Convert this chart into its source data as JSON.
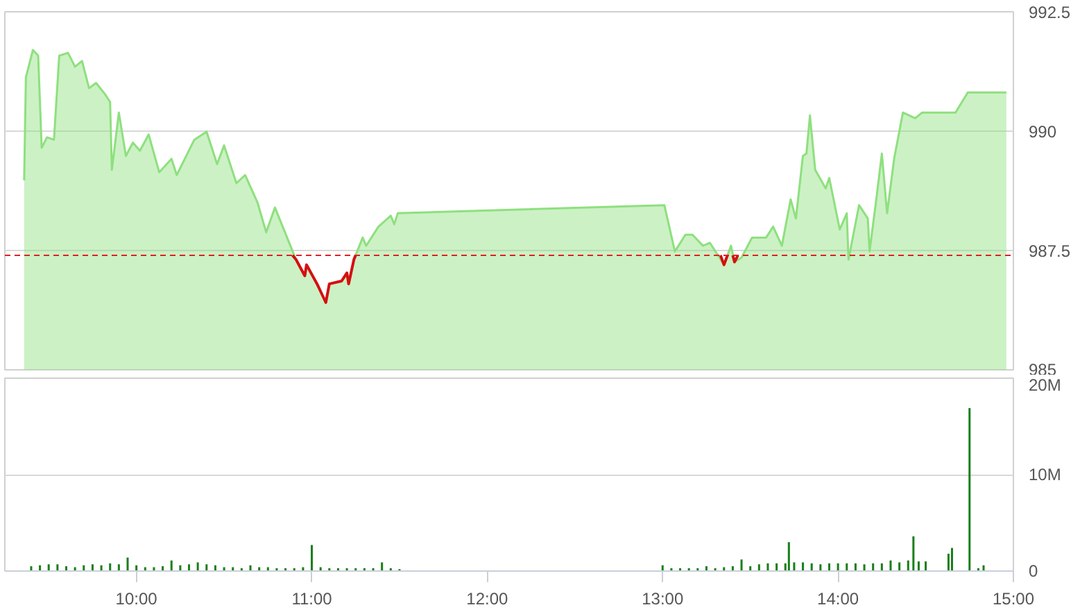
{
  "chart_data": [
    {
      "type": "area",
      "xlim": [
        9.25,
        15
      ],
      "ylim": [
        985,
        992.5
      ],
      "yticks": [
        985,
        987.5,
        990,
        992.5
      ],
      "grid": "y",
      "tick_labels": "y",
      "line_style": "solid",
      "ref_lines": [
        {
          "axis": "y",
          "value": 987.4,
          "color": "#e02020",
          "line_style": "dashed"
        }
      ],
      "series": [
        {
          "color": "#8ee07e",
          "x": [
            9.36,
            9.37,
            9.41,
            9.44,
            9.46,
            9.49,
            9.53,
            9.56,
            9.61,
            9.65,
            9.69,
            9.73,
            9.77,
            9.82,
            9.85,
            9.86,
            9.9,
            9.94,
            9.98,
            10.02,
            10.07,
            10.13,
            10.2,
            10.23,
            10.33,
            10.4,
            10.46,
            10.5,
            10.57,
            10.62,
            10.69,
            10.74,
            10.79,
            10.91,
            10.96,
            10.97,
            11.03,
            11.08,
            11.1,
            11.17,
            11.2,
            11.21,
            11.24,
            11.29,
            11.31,
            11.38,
            11.45,
            11.47,
            11.49,
            13.01,
            13.07,
            13.13,
            13.17,
            13.23,
            13.27,
            13.35,
            13.39,
            13.41,
            13.45,
            13.51,
            13.59,
            13.63,
            13.68,
            13.73,
            13.76,
            13.8,
            13.82,
            13.84,
            13.87,
            13.93,
            13.95,
            14.01,
            14.05,
            14.06,
            14.12,
            14.17,
            14.18,
            14.22,
            14.25,
            14.28,
            14.32,
            14.37,
            14.44,
            14.48,
            14.67,
            14.74,
            14.96
          ],
          "values": [
            988.97,
            991.13,
            991.7,
            991.58,
            989.65,
            989.87,
            989.82,
            991.58,
            991.64,
            991.35,
            991.47,
            990.9,
            991.01,
            990.78,
            990.61,
            989.19,
            990.39,
            989.48,
            989.76,
            989.59,
            989.93,
            989.14,
            989.42,
            989.08,
            989.82,
            989.99,
            989.31,
            989.7,
            988.91,
            989.08,
            988.51,
            987.88,
            988.4,
            987.31,
            986.97,
            987.2,
            986.8,
            986.41,
            986.8,
            986.86,
            987.03,
            986.8,
            987.31,
            987.77,
            987.6,
            988.0,
            988.23,
            988.05,
            988.28,
            988.45,
            987.48,
            987.83,
            987.83,
            987.6,
            987.66,
            987.2,
            987.6,
            987.26,
            987.35,
            987.77,
            987.77,
            988.0,
            987.6,
            988.57,
            988.17,
            989.48,
            989.53,
            990.33,
            989.19,
            988.8,
            989.02,
            987.94,
            988.28,
            987.31,
            988.45,
            988.17,
            987.48,
            988.62,
            989.53,
            988.28,
            989.42,
            990.39,
            990.27,
            990.39,
            990.39,
            990.81,
            990.81
          ]
        },
        {
          "type": "line",
          "color": "#d41010",
          "x": [
            10.89,
            10.91,
            10.96,
            10.97,
            11.03,
            11.08,
            11.1,
            11.17,
            11.2,
            11.21,
            11.24,
            11.25,
            11.26,
            13.33,
            13.35,
            13.37,
            13.38,
            13.4,
            13.41,
            13.43
          ],
          "values": [
            987.4,
            987.31,
            986.97,
            987.2,
            986.8,
            986.41,
            986.8,
            986.86,
            987.03,
            986.8,
            987.31,
            987.4,
            null,
            987.4,
            987.2,
            987.4,
            null,
            987.4,
            987.26,
            987.4
          ]
        }
      ]
    },
    {
      "type": "bar",
      "xlim": [
        9.25,
        15
      ],
      "ylim": [
        0,
        20
      ],
      "yticks": [
        {
          "value": 0,
          "label": "0"
        },
        {
          "value": 10,
          "label": "10M"
        },
        {
          "value": 20,
          "label": "20M"
        }
      ],
      "xticks": [
        {
          "value": 10,
          "label": "10:00"
        },
        {
          "value": 11,
          "label": "11:00"
        },
        {
          "value": 12,
          "label": "12:00"
        },
        {
          "value": 13,
          "label": "13:00"
        },
        {
          "value": 14,
          "label": "14:00"
        },
        {
          "value": 15,
          "label": "15:00"
        }
      ],
      "grid": "y",
      "series": [
        {
          "color": "#1a7f1a",
          "x": [
            9.4,
            9.45,
            9.5,
            9.55,
            9.6,
            9.65,
            9.7,
            9.75,
            9.8,
            9.85,
            9.9,
            9.95,
            10.0,
            10.05,
            10.1,
            10.15,
            10.2,
            10.25,
            10.3,
            10.35,
            10.4,
            10.45,
            10.5,
            10.55,
            10.6,
            10.65,
            10.7,
            10.75,
            10.8,
            10.85,
            10.9,
            10.95,
            11.0,
            11.05,
            11.1,
            11.15,
            11.2,
            11.25,
            11.3,
            11.35,
            11.4,
            11.45,
            11.5,
            13.0,
            13.05,
            13.1,
            13.15,
            13.2,
            13.25,
            13.3,
            13.35,
            13.4,
            13.45,
            13.5,
            13.55,
            13.6,
            13.65,
            13.7,
            13.72,
            13.75,
            13.8,
            13.85,
            13.9,
            13.95,
            14.0,
            14.05,
            14.1,
            14.15,
            14.2,
            14.25,
            14.3,
            14.35,
            14.4,
            14.43,
            14.46,
            14.5,
            14.63,
            14.65,
            14.75,
            14.8,
            14.83
          ],
          "values": [
            0.5,
            0.6,
            0.7,
            0.7,
            0.5,
            0.4,
            0.6,
            0.7,
            0.6,
            0.8,
            0.7,
            1.4,
            0.6,
            0.4,
            0.4,
            0.5,
            1.1,
            0.6,
            0.7,
            0.9,
            0.7,
            0.6,
            0.4,
            0.4,
            0.3,
            0.6,
            0.4,
            0.4,
            0.3,
            0.3,
            0.3,
            0.4,
            2.7,
            0.4,
            0.3,
            0.3,
            0.3,
            0.3,
            0.3,
            0.3,
            0.9,
            0.3,
            0.2,
            0.6,
            0.3,
            0.3,
            0.3,
            0.3,
            0.5,
            0.3,
            0.4,
            0.5,
            1.2,
            0.5,
            0.7,
            0.8,
            0.8,
            0.8,
            3.0,
            0.9,
            0.9,
            0.8,
            0.7,
            0.8,
            0.8,
            0.8,
            0.8,
            0.7,
            0.8,
            0.8,
            1.1,
            0.9,
            1.1,
            3.6,
            1.0,
            1.0,
            1.8,
            2.4,
            16.9,
            0.3,
            0.6
          ]
        }
      ]
    }
  ]
}
